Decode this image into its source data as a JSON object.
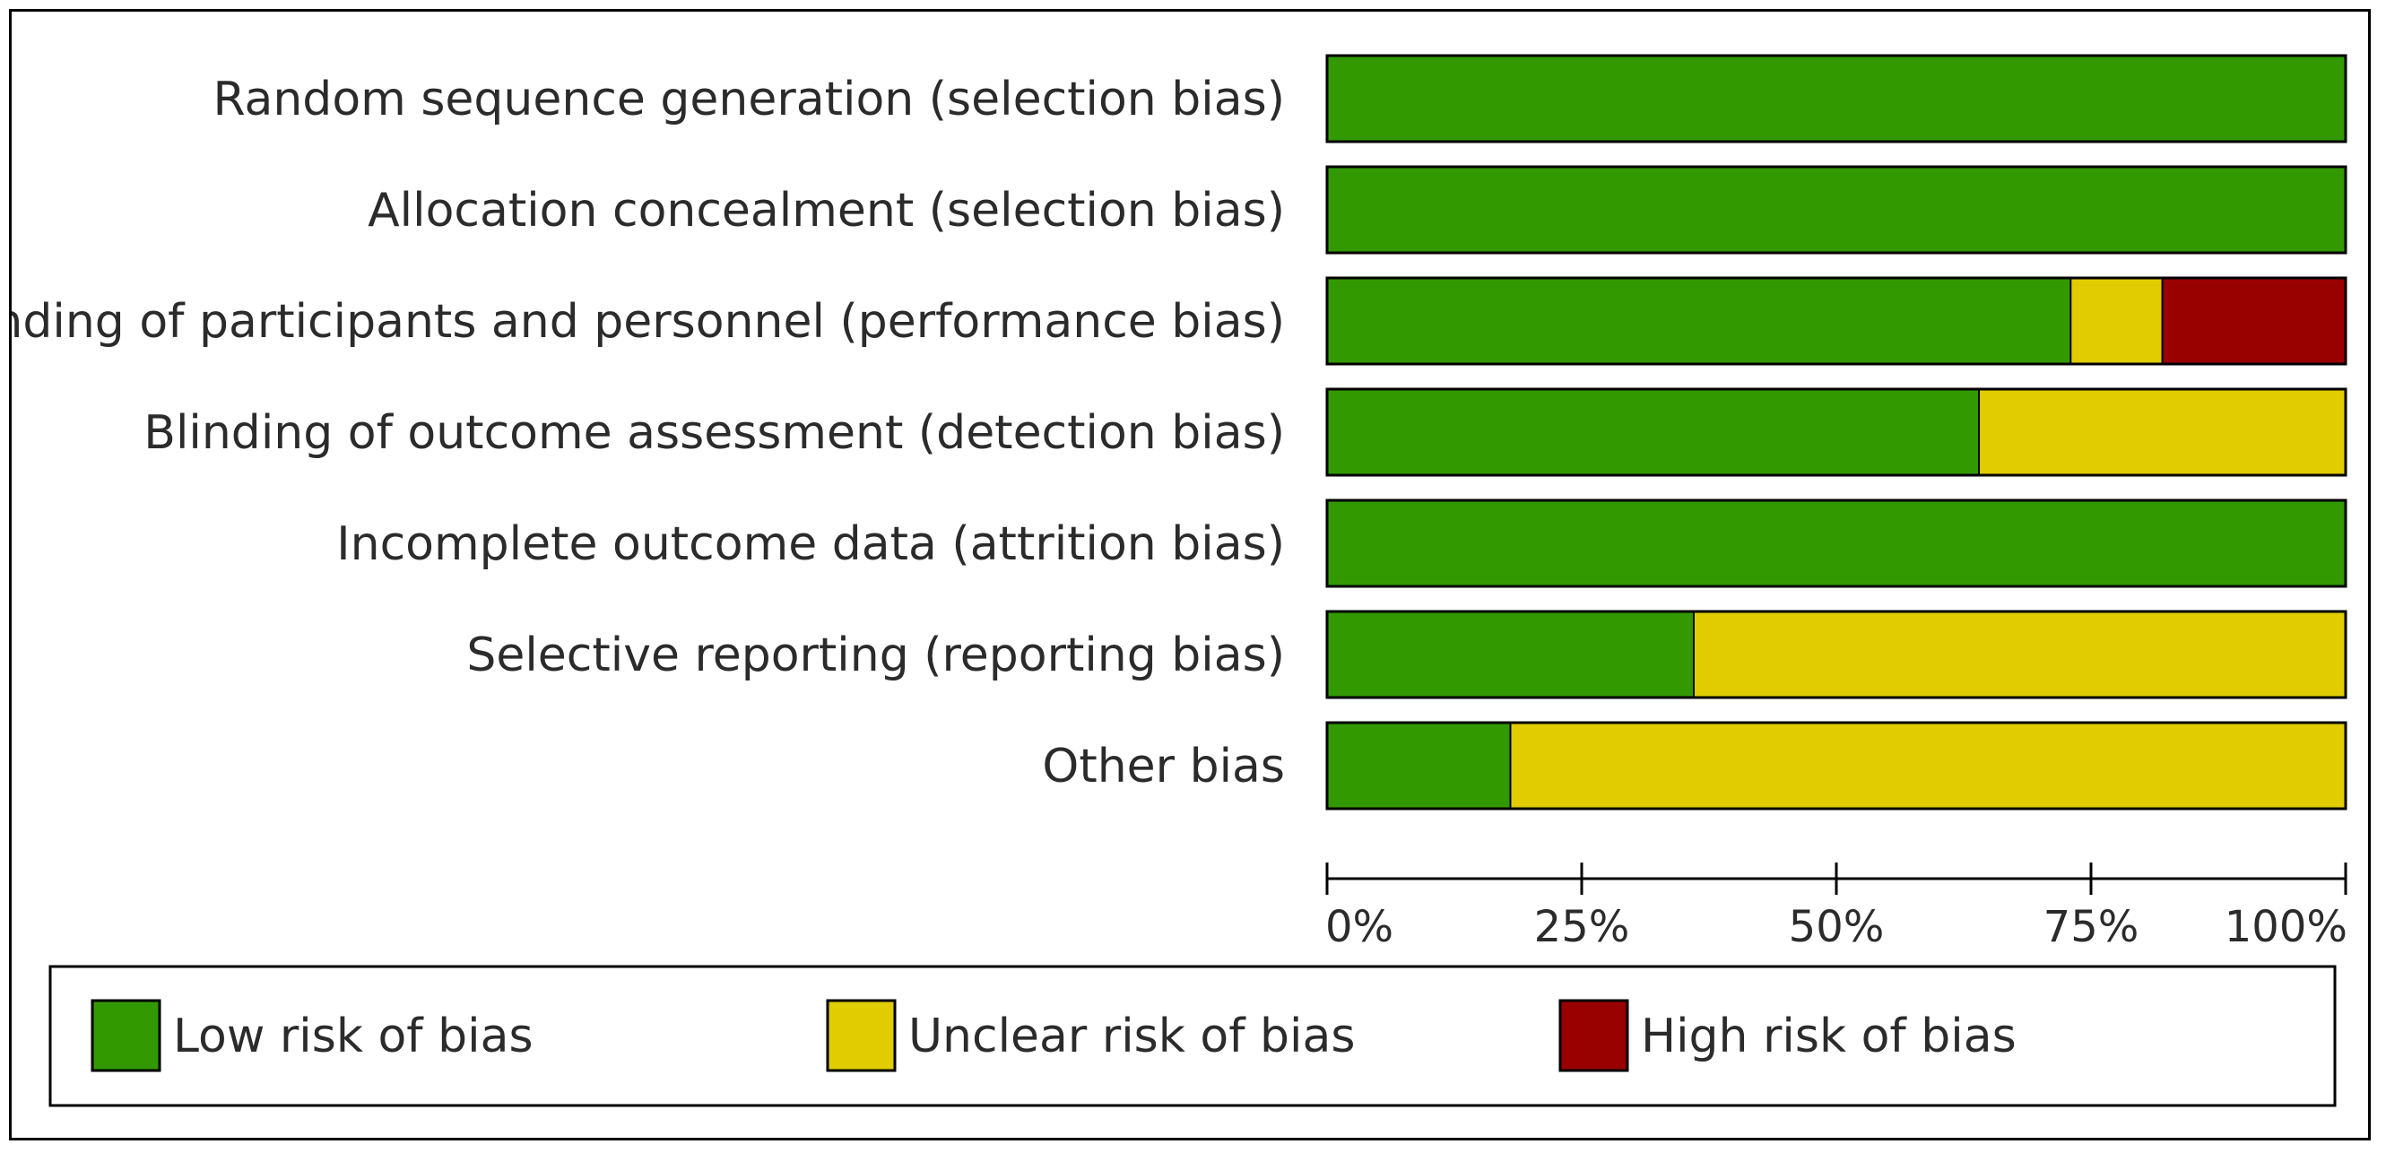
{
  "chart_data": {
    "type": "bar",
    "orientation": "horizontal",
    "stacked": true,
    "percent_scale": true,
    "categories": [
      "Random sequence generation (selection bias)",
      "Allocation concealment (selection bias)",
      "Blinding of participants and personnel (performance bias)",
      "Blinding of outcome assessment (detection bias)",
      "Incomplete outcome data (attrition bias)",
      "Selective reporting (reporting bias)",
      "Other bias"
    ],
    "series": [
      {
        "name": "Low risk of bias",
        "color": "#339900",
        "values": [
          100,
          100,
          73,
          64,
          100,
          36,
          18
        ]
      },
      {
        "name": "Unclear risk of bias",
        "color": "#e0cc00",
        "values": [
          0,
          0,
          9,
          36,
          0,
          64,
          82
        ]
      },
      {
        "name": "High risk of bias",
        "color": "#990000",
        "values": [
          0,
          0,
          18,
          0,
          0,
          0,
          0
        ]
      }
    ],
    "xlim": [
      0,
      100
    ],
    "xticks": [
      0,
      25,
      50,
      75,
      100
    ],
    "xtick_labels": [
      "0%",
      "25%",
      "50%",
      "75%",
      "100%"
    ],
    "grid": false,
    "legend_position": "bottom"
  }
}
